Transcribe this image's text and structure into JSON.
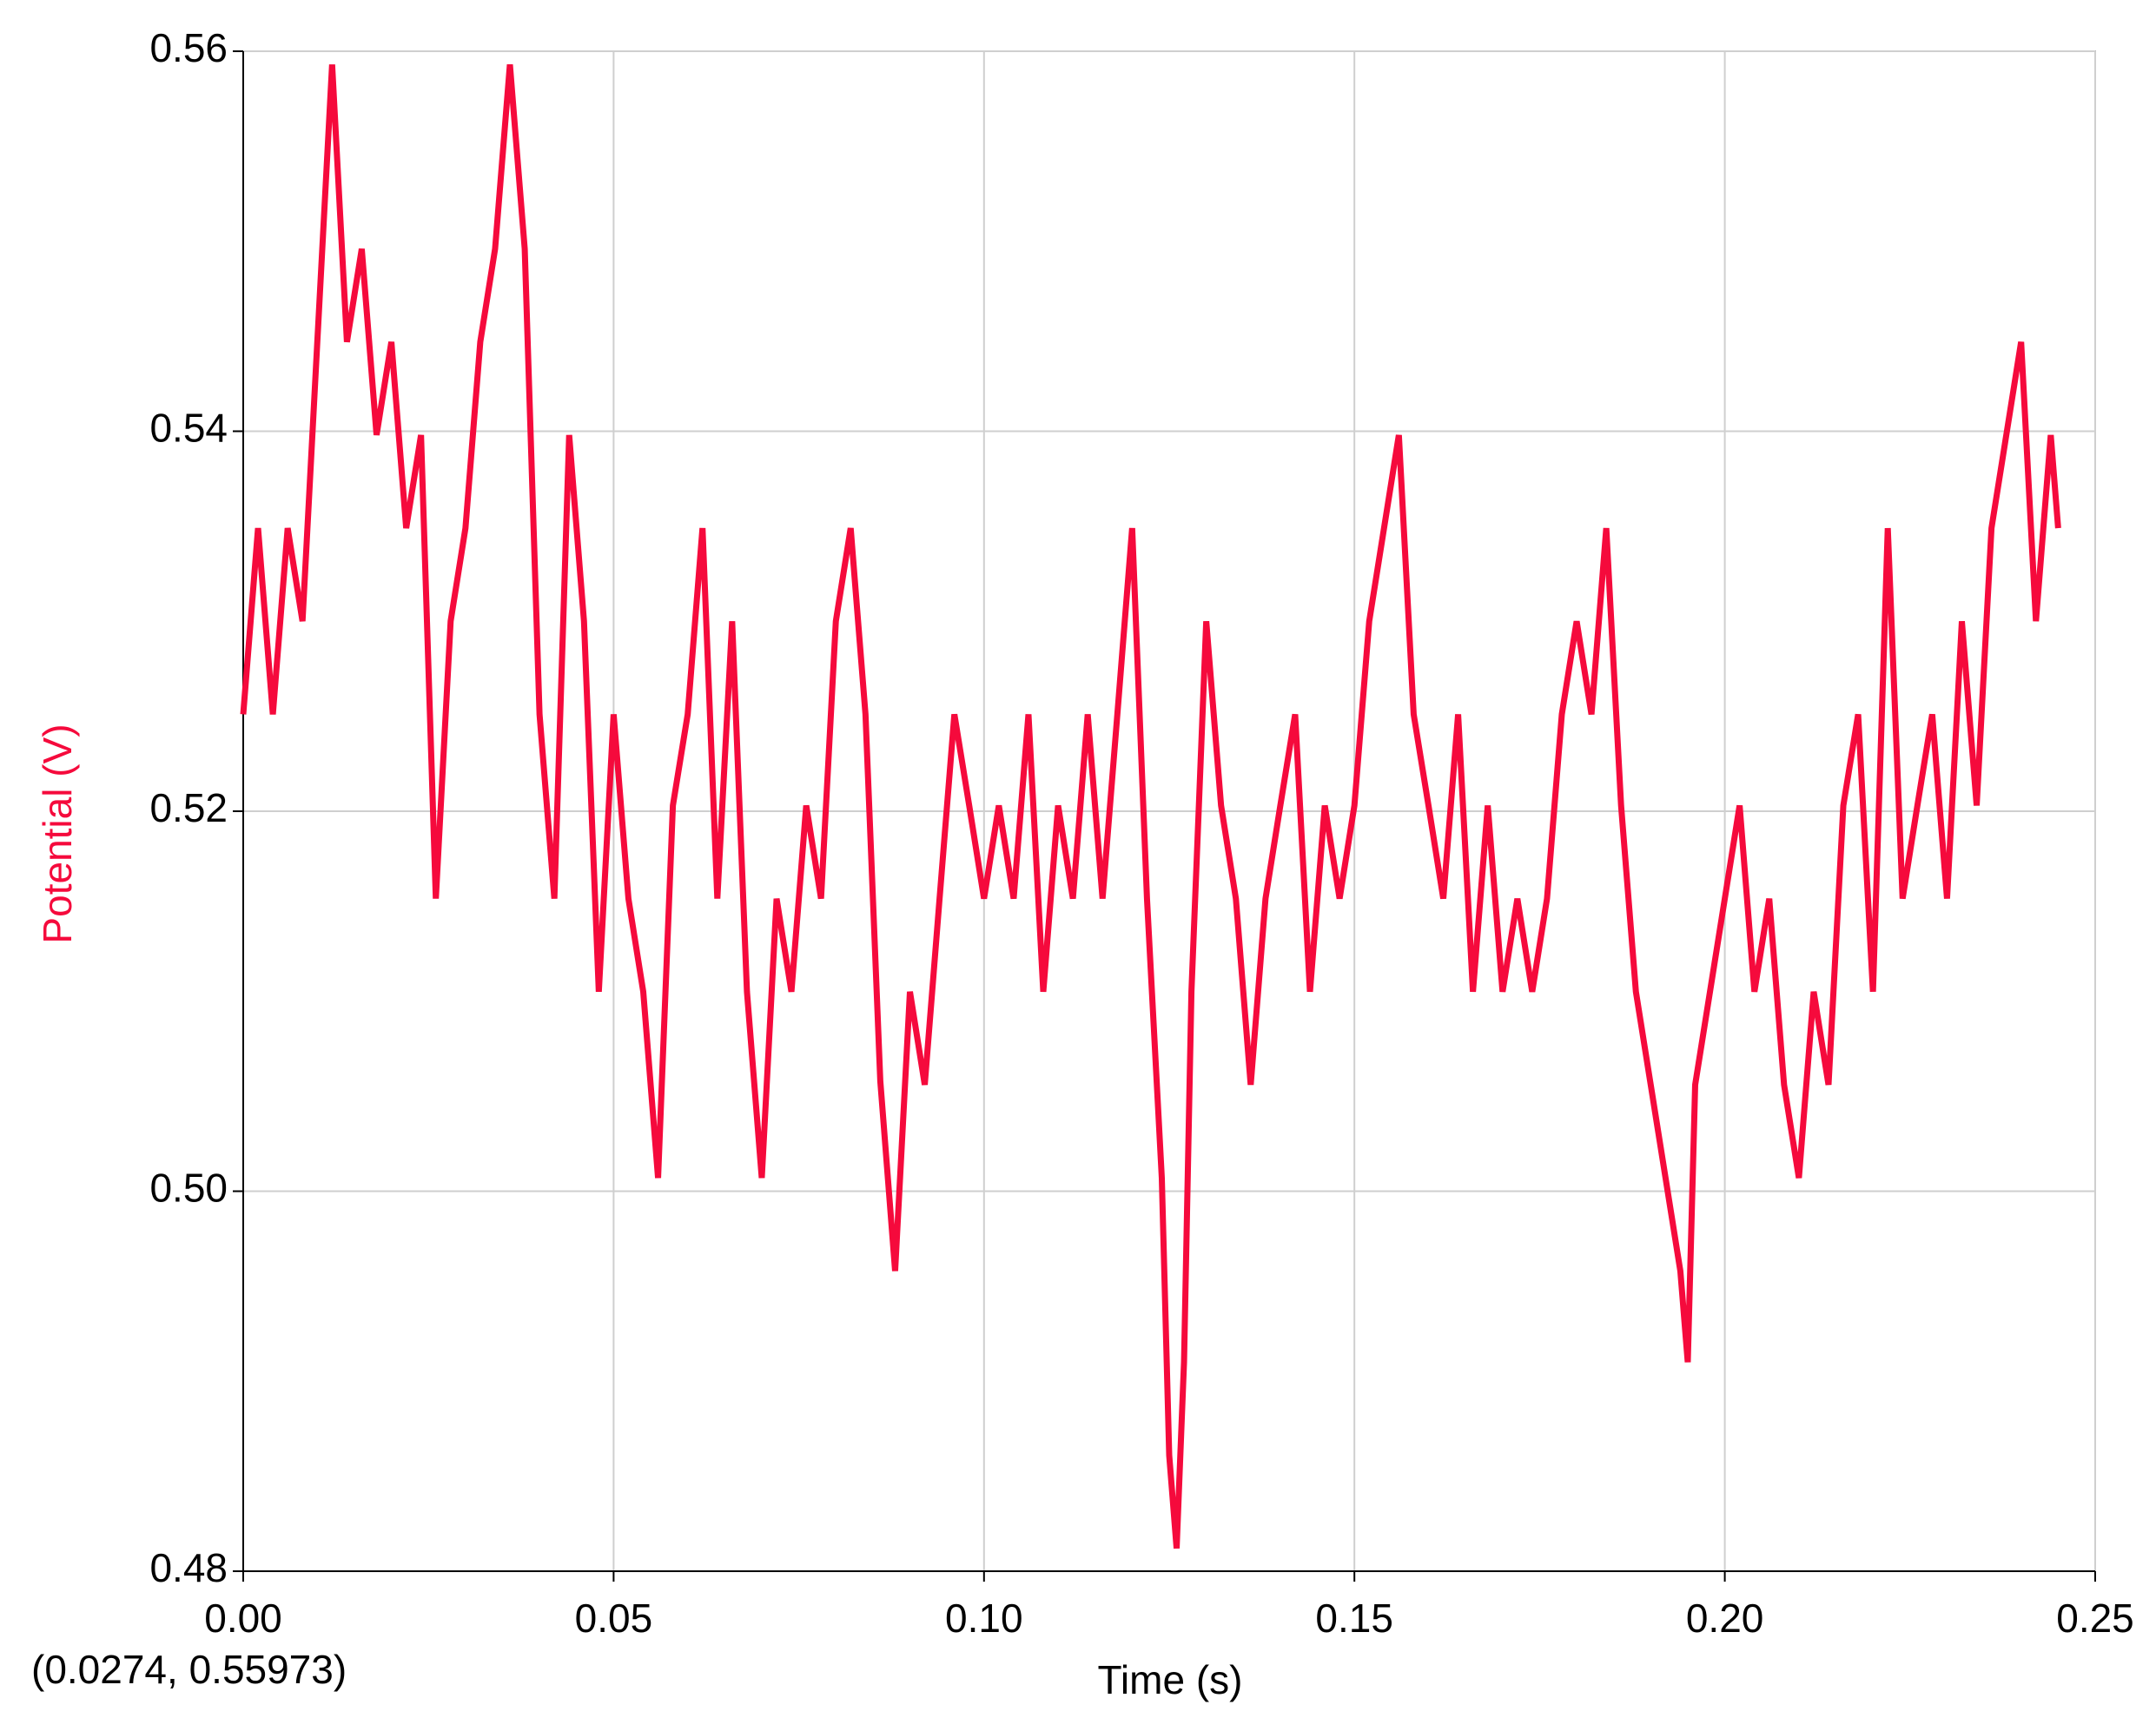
{
  "chart_data": {
    "type": "line",
    "x_label": "Time (s)",
    "y_label": "Potential (V)",
    "annotation": "(0.0274, 0.55973)",
    "xlim": [
      0,
      0.25
    ],
    "ylim": [
      0.48,
      0.56
    ],
    "xticks": [
      {
        "value": 0,
        "label": "0.00"
      },
      {
        "value": 0.05,
        "label": "0.05"
      },
      {
        "value": 0.1,
        "label": "0.10"
      },
      {
        "value": 0.15,
        "label": "0.15"
      },
      {
        "value": 0.2,
        "label": "0.20"
      },
      {
        "value": 0.25,
        "label": "0.25"
      }
    ],
    "yticks": [
      0.48,
      {
        "value": 0.5,
        "label": "0.50"
      },
      0.52,
      0.54,
      0.56
    ],
    "grid": true,
    "color": "#f50a3c",
    "x": [
      0,
      0.002,
      0.004,
      0.006,
      0.008,
      0.01,
      0.012,
      0.014,
      0.016,
      0.018,
      0.02,
      0.022,
      0.024,
      0.026,
      0.028,
      0.03,
      0.032,
      0.034,
      0.036,
      0.038,
      0.04,
      0.042,
      0.044,
      0.046,
      0.048,
      0.05,
      0.052,
      0.054,
      0.056,
      0.058,
      0.06,
      0.062,
      0.064,
      0.066,
      0.068,
      0.07,
      0.072,
      0.074,
      0.076,
      0.078,
      0.08,
      0.082,
      0.084,
      0.086,
      0.088,
      0.09,
      0.092,
      0.094,
      0.096,
      0.098,
      0.1,
      0.102,
      0.104,
      0.106,
      0.108,
      0.11,
      0.112,
      0.114,
      0.116,
      0.118,
      0.12,
      0.122,
      0.124,
      0.125,
      0.126,
      0.127,
      0.128,
      0.13,
      0.132,
      0.134,
      0.136,
      0.138,
      0.14,
      0.142,
      0.144,
      0.146,
      0.148,
      0.15,
      0.152,
      0.154,
      0.156,
      0.158,
      0.16,
      0.162,
      0.164,
      0.166,
      0.168,
      0.17,
      0.172,
      0.174,
      0.176,
      0.178,
      0.18,
      0.182,
      0.184,
      0.186,
      0.188,
      0.19,
      0.192,
      0.194,
      0.195,
      0.196,
      0.198,
      0.2,
      0.202,
      0.204,
      0.206,
      0.208,
      0.21,
      0.212,
      0.214,
      0.216,
      0.218,
      0.22,
      0.222,
      0.224,
      0.226,
      0.228,
      0.23,
      0.232,
      0.234,
      0.236,
      0.238,
      0.24,
      0.242,
      0.244,
      0.245
    ],
    "values": [
      0.5251,
      0.5349,
      0.5251,
      0.5349,
      0.53,
      0.5447,
      0.5593,
      0.5447,
      0.5496,
      0.5398,
      0.5447,
      0.5349,
      0.5398,
      0.5154,
      0.53,
      0.5349,
      0.5447,
      0.5496,
      0.5593,
      0.5496,
      0.5251,
      0.5154,
      0.5398,
      0.53,
      0.5105,
      0.5251,
      0.5154,
      0.5105,
      0.5007,
      0.5203,
      0.5251,
      0.5349,
      0.5154,
      0.53,
      0.5105,
      0.5007,
      0.5154,
      0.5105,
      0.5203,
      0.5154,
      0.53,
      0.5349,
      0.5251,
      0.5058,
      0.4958,
      0.5105,
      0.5056,
      0.5154,
      0.5251,
      0.5203,
      0.5154,
      0.5203,
      0.5154,
      0.5251,
      0.5105,
      0.5203,
      0.5154,
      0.5251,
      0.5154,
      0.5251,
      0.5349,
      0.5154,
      0.5007,
      0.4861,
      0.4812,
      0.491,
      0.5105,
      0.53,
      0.5203,
      0.5154,
      0.5056,
      0.5154,
      0.5203,
      0.5251,
      0.5105,
      0.5203,
      0.5154,
      0.5203,
      0.53,
      0.5349,
      0.5398,
      0.5251,
      0.5203,
      0.5154,
      0.5251,
      0.5105,
      0.5203,
      0.5105,
      0.5154,
      0.5105,
      0.5154,
      0.5251,
      0.53,
      0.5251,
      0.5349,
      0.5203,
      0.5105,
      0.5056,
      0.5007,
      0.4958,
      0.491,
      0.5056,
      0.5105,
      0.5154,
      0.5203,
      0.5105,
      0.5154,
      0.5056,
      0.5007,
      0.5105,
      0.5056,
      0.5203,
      0.5251,
      0.5105,
      0.5349,
      0.5154,
      0.5203,
      0.5251,
      0.5154,
      0.53,
      0.5203,
      0.5349,
      0.5398,
      0.5447,
      0.53,
      0.5398,
      0.5349
    ]
  }
}
